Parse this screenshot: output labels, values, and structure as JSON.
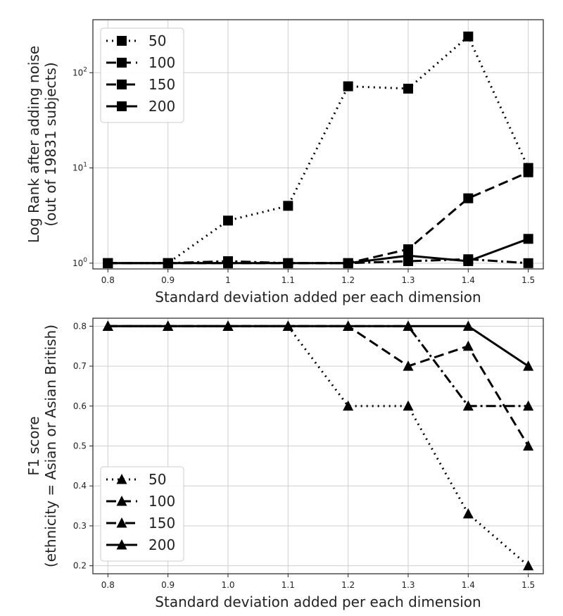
{
  "chart_data": [
    {
      "type": "line",
      "title": "",
      "xlabel": "Standard deviation added per each dimension",
      "ylabel_lines": [
        "Log Rank after adding noise",
        "(out of 19831 subjects)"
      ],
      "yscale": "log",
      "x": [
        0.8,
        0.9,
        1.0,
        1.1,
        1.2,
        1.3,
        1.4,
        1.5
      ],
      "x_tick_labels": [
        "0.8",
        "0.9",
        "1",
        "1.1",
        "1.2",
        "1.3",
        "1.4",
        "1.5"
      ],
      "xlim": [
        0.775,
        1.525
      ],
      "ylim": [
        0.87,
        360
      ],
      "y_ticks": [
        {
          "base": "10",
          "exp": "0",
          "value": 1
        },
        {
          "base": "10",
          "exp": "1",
          "value": 10
        },
        {
          "base": "10",
          "exp": "2",
          "value": 100
        }
      ],
      "grid": true,
      "legend_position": "upper-left",
      "marker": "square",
      "series": [
        {
          "name": "50",
          "dash": "dotted",
          "values": [
            1,
            1,
            2.8,
            4,
            72,
            68,
            240,
            10
          ]
        },
        {
          "name": "100",
          "dash": "dashed",
          "values": [
            1,
            1,
            1,
            1,
            1,
            1.4,
            4.8,
            9
          ]
        },
        {
          "name": "150",
          "dash": "dashdot",
          "values": [
            1,
            1,
            1.05,
            1,
            1,
            1.05,
            1.1,
            1
          ]
        },
        {
          "name": "200",
          "dash": "solid",
          "values": [
            1,
            1,
            1,
            1,
            1,
            1.2,
            1.05,
            1.8
          ]
        }
      ]
    },
    {
      "type": "line",
      "title": "",
      "xlabel": "Standard deviation added per each dimension",
      "ylabel_lines": [
        "F1 score",
        "(ethnicity = Asian or Asian British)"
      ],
      "yscale": "linear",
      "x": [
        0.8,
        0.9,
        1.0,
        1.1,
        1.2,
        1.3,
        1.4,
        1.5
      ],
      "x_tick_labels": [
        "0.8",
        "0.9",
        "1.0",
        "1.1",
        "1.2",
        "1.3",
        "1.4",
        "1.5"
      ],
      "xlim": [
        0.775,
        1.525
      ],
      "ylim": [
        0.18,
        0.82
      ],
      "y_ticks": [
        {
          "label": "0.2",
          "value": 0.2
        },
        {
          "label": "0.3",
          "value": 0.3
        },
        {
          "label": "0.4",
          "value": 0.4
        },
        {
          "label": "0.5",
          "value": 0.5
        },
        {
          "label": "0.6",
          "value": 0.6
        },
        {
          "label": "0.7",
          "value": 0.7
        },
        {
          "label": "0.8",
          "value": 0.8
        }
      ],
      "grid": true,
      "legend_position": "lower-left",
      "marker": "triangle",
      "series": [
        {
          "name": "50",
          "dash": "dotted",
          "values": [
            0.8,
            0.8,
            0.8,
            0.8,
            0.6,
            0.6,
            0.33,
            0.2
          ]
        },
        {
          "name": "100",
          "dash": "dashed",
          "values": [
            0.8,
            0.8,
            0.8,
            0.8,
            0.8,
            0.7,
            0.75,
            0.5
          ]
        },
        {
          "name": "150",
          "dash": "dashdot",
          "values": [
            0.8,
            0.8,
            0.8,
            0.8,
            0.8,
            0.8,
            0.6,
            0.6
          ]
        },
        {
          "name": "200",
          "dash": "solid",
          "values": [
            0.8,
            0.8,
            0.8,
            0.8,
            0.8,
            0.8,
            0.8,
            0.7
          ]
        }
      ]
    }
  ]
}
